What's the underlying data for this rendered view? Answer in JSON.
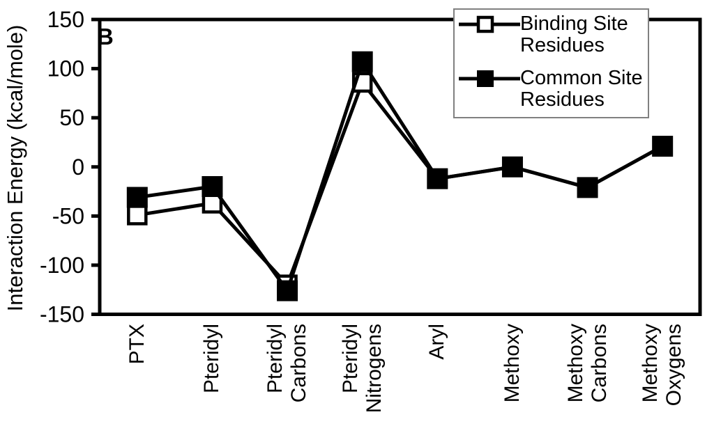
{
  "panel_label": "B",
  "y_axis": {
    "title": "Interaction Energy (kcal/mole)",
    "ticks": [
      150,
      100,
      50,
      0,
      -50,
      -100,
      -150
    ]
  },
  "legend": {
    "items": [
      {
        "label": "Binding Site Residues",
        "marker": "open-square"
      },
      {
        "label": "Common Site Residues",
        "marker": "filled-square"
      }
    ]
  },
  "chart_data": {
    "type": "line",
    "title": "",
    "panel_label": "B",
    "categories": [
      "PTX",
      "Pteridyl",
      "Pteridyl Carbons",
      "Pteridyl Nitrogens",
      "Aryl",
      "Methoxy",
      "Methoxy Carbons",
      "Methoxy Oxygens"
    ],
    "series": [
      {
        "name": "Binding Site Residues",
        "marker": "open-square",
        "line_color": "#000000",
        "marker_fill": "#ffffff",
        "values": [
          -49,
          -37,
          -120,
          86,
          -12,
          0,
          -21,
          21
        ]
      },
      {
        "name": "Common Site Residues",
        "marker": "filled-square",
        "line_color": "#000000",
        "marker_fill": "#000000",
        "values": [
          -31,
          -20,
          -126,
          107,
          -12,
          0,
          -21,
          21
        ]
      }
    ],
    "xlabel": "",
    "ylabel": "Interaction Energy (kcal/mole)",
    "ylim": [
      -150,
      150
    ],
    "yticks": [
      150,
      100,
      50,
      0,
      -50,
      -100,
      -150
    ],
    "grid": false,
    "legend_position": "top-right",
    "colors": {
      "axis": "#000000",
      "line": "#000000",
      "legend_border": "#808080",
      "background": "#ffffff"
    }
  }
}
